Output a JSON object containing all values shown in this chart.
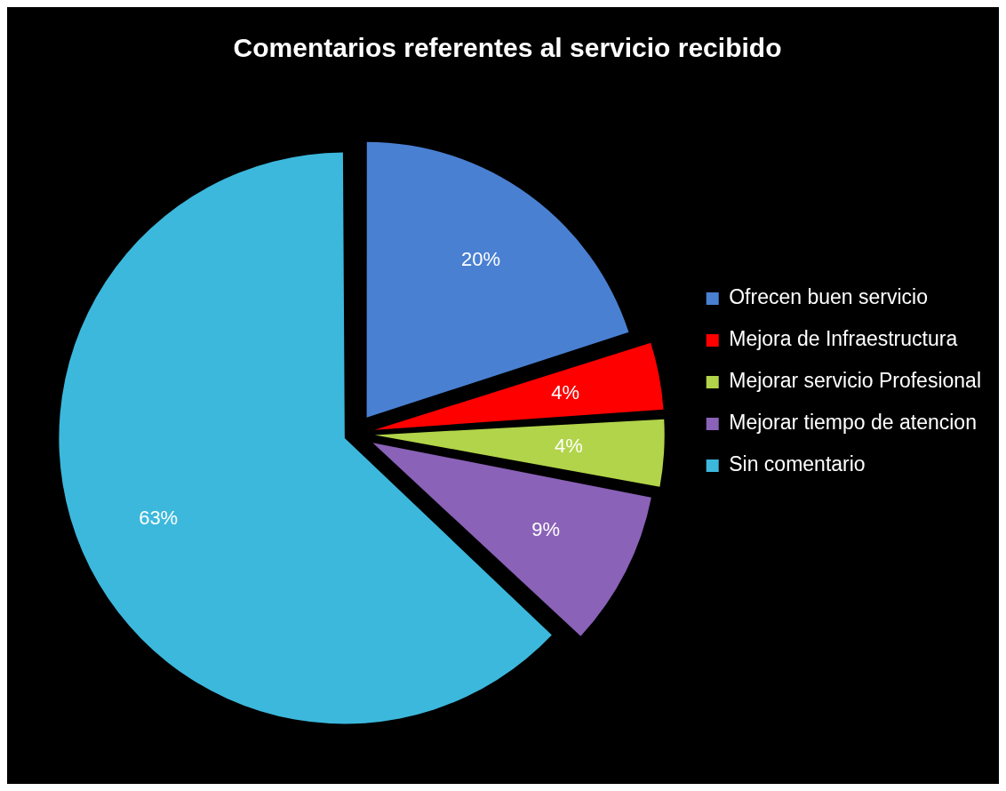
{
  "chart_data": {
    "type": "pie",
    "title": "Comentarios referentes al servicio recibido",
    "categories": [
      "Ofrecen buen servicio",
      "Mejora de Infraestructura",
      "Mejorar servicio Profesional",
      "Mejorar tiempo de atencion",
      "Sin comentario"
    ],
    "values": [
      20,
      4,
      4,
      9,
      63
    ],
    "colors": [
      "#4a80d2",
      "#ff0000",
      "#b2d44a",
      "#8a62b8",
      "#3cb8dc"
    ],
    "value_labels": [
      "20%",
      "4%",
      "4%",
      "9%",
      "63%"
    ],
    "legend": "right"
  }
}
